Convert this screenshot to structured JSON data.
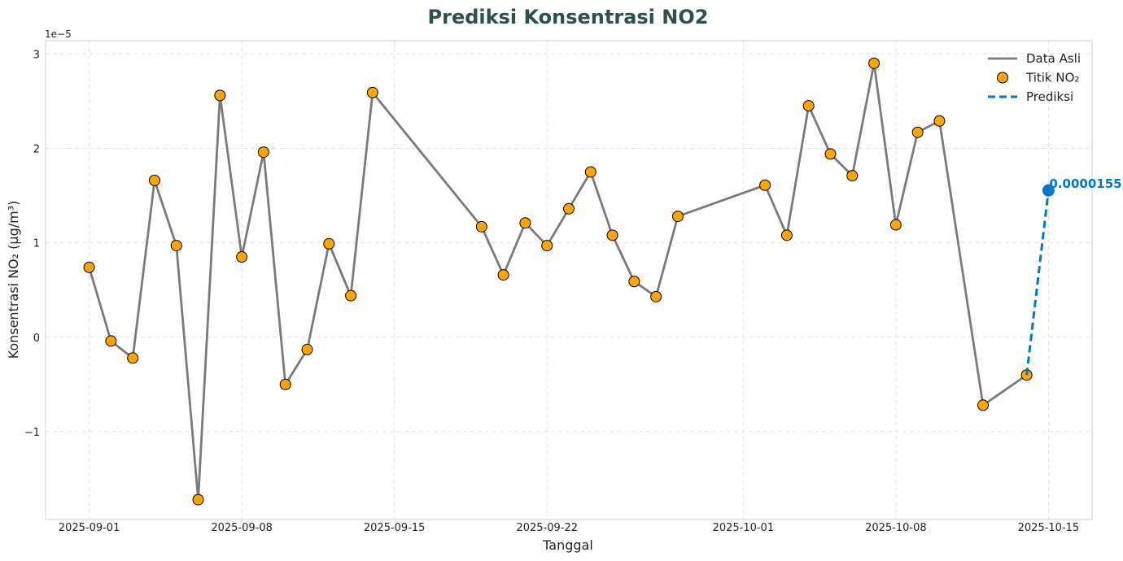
{
  "chart_data": {
    "type": "line",
    "title": "Prediksi Konsentrasi NO2",
    "xlabel": "Tanggal",
    "ylabel": "Konsentrasi NO₂ (µg/m³)",
    "y_offset_label": "1e−5",
    "x_range": [
      "2025-08-30",
      "2025-10-17"
    ],
    "ylim": [
      -1.93,
      3.14
    ],
    "grid": true,
    "legend_position": "top-right",
    "x_ticks": [
      "2025-09-01",
      "2025-09-08",
      "2025-09-15",
      "2025-09-22",
      "2025-10-01",
      "2025-10-08",
      "2025-10-15"
    ],
    "y_ticks": [
      -1,
      0,
      1,
      2,
      3
    ],
    "y_tick_labels": [
      "−1",
      "0",
      "1",
      "2",
      "3"
    ],
    "colors": {
      "actual_line": "#7a7a7a",
      "points_fill": "#ffa500",
      "points_edge": "#000000",
      "prediction": "#0077cc",
      "title": "#2f4f4f",
      "grid": "#e0e0e0"
    },
    "series": [
      {
        "name": "Data Asli",
        "style": "line",
        "x": [
          "2025-09-01",
          "2025-09-02",
          "2025-09-03",
          "2025-09-04",
          "2025-09-05",
          "2025-09-06",
          "2025-09-07",
          "2025-09-08",
          "2025-09-09",
          "2025-09-10",
          "2025-09-11",
          "2025-09-12",
          "2025-09-13",
          "2025-09-14",
          "2025-09-19",
          "2025-09-20",
          "2025-09-21",
          "2025-09-22",
          "2025-09-23",
          "2025-09-24",
          "2025-09-25",
          "2025-09-26",
          "2025-09-27",
          "2025-09-28",
          "2025-10-02",
          "2025-10-03",
          "2025-10-04",
          "2025-10-05",
          "2025-10-06",
          "2025-10-07",
          "2025-10-08",
          "2025-10-09",
          "2025-10-10",
          "2025-10-12",
          "2025-10-14"
        ],
        "y": [
          0.74,
          -0.04,
          -0.22,
          1.66,
          0.97,
          -1.72,
          2.56,
          0.85,
          1.96,
          -0.5,
          -0.13,
          0.99,
          0.44,
          2.59,
          1.17,
          0.66,
          1.21,
          0.97,
          1.36,
          1.75,
          1.08,
          0.59,
          0.43,
          1.28,
          1.61,
          1.08,
          2.45,
          1.94,
          1.71,
          2.9,
          1.19,
          2.17,
          2.29,
          -0.72,
          -0.4
        ]
      },
      {
        "name": "Titik NO₂",
        "style": "scatter",
        "same_as": "Data Asli"
      },
      {
        "name": "Prediksi",
        "style": "dashed-line",
        "x": [
          "2025-10-14",
          "2025-10-15"
        ],
        "y": [
          -0.4,
          1.555
        ]
      }
    ],
    "annotations": [
      {
        "text": "0.00001555",
        "x": "2025-10-15",
        "y": 1.555
      }
    ]
  }
}
